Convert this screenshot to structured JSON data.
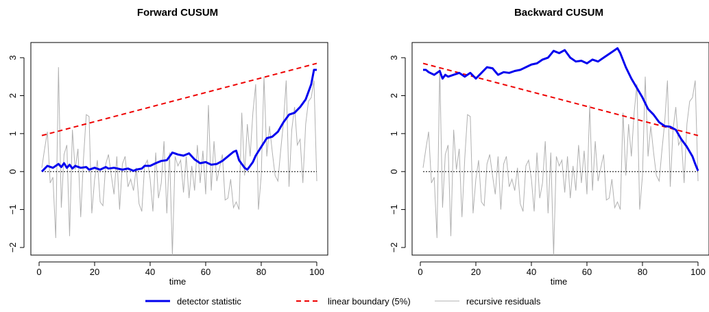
{
  "legend": {
    "detector": "detector statistic",
    "boundary": "linear boundary (5%)",
    "residuals": "recursive residuals"
  },
  "colors": {
    "detector": "#0000ee",
    "boundary": "#ee0000",
    "residuals": "#b0b0b0",
    "zero_line": "#000000"
  },
  "chart_data": [
    {
      "type": "line",
      "title": "Forward CUSUM",
      "xlabel": "time",
      "ylabel": "",
      "xlim": [
        1,
        100
      ],
      "ylim": [
        -2.2,
        3.4
      ],
      "x_ticks": [
        0,
        20,
        40,
        60,
        80,
        100
      ],
      "y_ticks": [
        -2,
        -1,
        0,
        1,
        2,
        3
      ],
      "zero_line": 0,
      "boundary": {
        "x": [
          1,
          100
        ],
        "y": [
          0.95,
          2.85
        ]
      },
      "detector": {
        "x": [
          1,
          3,
          5,
          7,
          8,
          9,
          10,
          11,
          12,
          13,
          15,
          17,
          18,
          20,
          22,
          24,
          25,
          27,
          30,
          32,
          34,
          35,
          37,
          38,
          40,
          42,
          44,
          46,
          48,
          50,
          52,
          54,
          56,
          58,
          60,
          62,
          64,
          66,
          68,
          70,
          71,
          72,
          74,
          75,
          76,
          77,
          78,
          80,
          82,
          84,
          86,
          88,
          90,
          92,
          94,
          96,
          98,
          99,
          100
        ],
        "y": [
          0.0,
          0.15,
          0.1,
          0.2,
          0.12,
          0.22,
          0.1,
          0.18,
          0.08,
          0.15,
          0.1,
          0.12,
          0.05,
          0.1,
          0.05,
          0.12,
          0.08,
          0.1,
          0.05,
          0.08,
          0.02,
          0.05,
          0.08,
          0.15,
          0.15,
          0.22,
          0.28,
          0.3,
          0.5,
          0.45,
          0.42,
          0.48,
          0.32,
          0.22,
          0.25,
          0.18,
          0.2,
          0.28,
          0.4,
          0.52,
          0.55,
          0.3,
          0.1,
          0.05,
          0.15,
          0.25,
          0.42,
          0.65,
          0.88,
          0.92,
          1.05,
          1.3,
          1.5,
          1.55,
          1.7,
          1.9,
          2.3,
          2.68,
          2.68
        ]
      },
      "residuals": {
        "x": [
          1,
          2,
          3,
          4,
          5,
          6,
          7,
          8,
          9,
          10,
          11,
          12,
          13,
          14,
          15,
          16,
          17,
          18,
          19,
          20,
          21,
          22,
          23,
          24,
          25,
          26,
          27,
          28,
          29,
          30,
          31,
          32,
          33,
          34,
          35,
          36,
          37,
          38,
          39,
          40,
          41,
          42,
          43,
          44,
          45,
          46,
          47,
          48,
          49,
          50,
          51,
          52,
          53,
          54,
          55,
          56,
          57,
          58,
          59,
          60,
          61,
          62,
          63,
          64,
          65,
          66,
          67,
          68,
          69,
          70,
          71,
          72,
          73,
          74,
          75,
          76,
          77,
          78,
          79,
          80,
          81,
          82,
          83,
          84,
          85,
          86,
          87,
          88,
          89,
          90,
          91,
          92,
          93,
          94,
          95,
          96,
          97,
          98,
          99,
          100
        ],
        "y": [
          0.1,
          0.6,
          1.05,
          -0.3,
          -0.15,
          -1.75,
          2.75,
          -0.95,
          0.45,
          0.7,
          -1.7,
          1.1,
          0.05,
          0.6,
          -1.2,
          0.35,
          1.5,
          1.45,
          -1.1,
          -0.2,
          0.3,
          -0.8,
          -0.9,
          0.2,
          0.45,
          -0.1,
          -0.6,
          0.4,
          -1.0,
          0.2,
          0.4,
          -0.4,
          -0.2,
          -0.5,
          0.1,
          -0.85,
          -1.05,
          0.15,
          0.3,
          -0.2,
          -1.05,
          0.5,
          -0.7,
          -0.3,
          0.8,
          -1.1,
          0.5,
          -2.2,
          0.4,
          0.15,
          0.3,
          -0.55,
          0.4,
          -0.7,
          0.15,
          -0.5,
          0.7,
          -0.3,
          0.55,
          -0.6,
          1.75,
          -0.5,
          0.8,
          -0.25,
          0.1,
          0.45,
          -0.75,
          -0.7,
          -0.2,
          -0.95,
          -0.8,
          -1.0,
          1.55,
          -0.1,
          1.25,
          0.4,
          1.55,
          2.3,
          -1.0,
          -0.1,
          2.5,
          0.4,
          1.2,
          0.5,
          -0.1,
          -0.25,
          0.55,
          1.3,
          2.4,
          -0.4,
          1.1,
          1.7,
          0.7,
          0.85,
          -0.3,
          1.25,
          1.85,
          1.95,
          2.4,
          -0.25
        ]
      }
    },
    {
      "type": "line",
      "title": "Backward CUSUM",
      "xlabel": "time",
      "ylabel": "",
      "xlim": [
        1,
        100
      ],
      "ylim": [
        -2.2,
        3.4
      ],
      "x_ticks": [
        0,
        20,
        40,
        60,
        80,
        100
      ],
      "y_ticks": [
        -2,
        -1,
        0,
        1,
        2,
        3
      ],
      "zero_line": 0,
      "boundary": {
        "x": [
          1,
          100
        ],
        "y": [
          2.85,
          0.95
        ]
      },
      "detector": {
        "x": [
          1,
          2,
          3,
          5,
          7,
          8,
          9,
          10,
          12,
          14,
          16,
          18,
          20,
          22,
          24,
          26,
          28,
          30,
          32,
          34,
          36,
          38,
          40,
          42,
          44,
          46,
          48,
          50,
          52,
          54,
          56,
          58,
          60,
          62,
          64,
          66,
          68,
          70,
          71,
          72,
          74,
          76,
          78,
          80,
          82,
          84,
          86,
          88,
          90,
          92,
          94,
          96,
          98,
          99,
          100
        ],
        "y": [
          2.68,
          2.68,
          2.62,
          2.55,
          2.65,
          2.45,
          2.55,
          2.5,
          2.55,
          2.6,
          2.5,
          2.6,
          2.45,
          2.6,
          2.75,
          2.72,
          2.55,
          2.62,
          2.6,
          2.65,
          2.68,
          2.75,
          2.82,
          2.85,
          2.95,
          3.0,
          3.18,
          3.12,
          3.2,
          3.0,
          2.9,
          2.92,
          2.85,
          2.95,
          2.9,
          3.0,
          3.1,
          3.2,
          3.25,
          3.12,
          2.75,
          2.45,
          2.2,
          1.95,
          1.65,
          1.5,
          1.3,
          1.2,
          1.18,
          1.1,
          0.85,
          0.65,
          0.4,
          0.2,
          0.02
        ]
      },
      "residuals": {
        "x": [
          1,
          2,
          3,
          4,
          5,
          6,
          7,
          8,
          9,
          10,
          11,
          12,
          13,
          14,
          15,
          16,
          17,
          18,
          19,
          20,
          21,
          22,
          23,
          24,
          25,
          26,
          27,
          28,
          29,
          30,
          31,
          32,
          33,
          34,
          35,
          36,
          37,
          38,
          39,
          40,
          41,
          42,
          43,
          44,
          45,
          46,
          47,
          48,
          49,
          50,
          51,
          52,
          53,
          54,
          55,
          56,
          57,
          58,
          59,
          60,
          61,
          62,
          63,
          64,
          65,
          66,
          67,
          68,
          69,
          70,
          71,
          72,
          73,
          74,
          75,
          76,
          77,
          78,
          79,
          80,
          81,
          82,
          83,
          84,
          85,
          86,
          87,
          88,
          89,
          90,
          91,
          92,
          93,
          94,
          95,
          96,
          97,
          98,
          99,
          100
        ],
        "y": [
          0.1,
          0.6,
          1.05,
          -0.3,
          -0.15,
          -1.75,
          2.75,
          -0.95,
          0.45,
          0.7,
          -1.7,
          1.1,
          0.05,
          0.6,
          -1.2,
          0.35,
          1.5,
          1.45,
          -1.1,
          -0.2,
          0.3,
          -0.8,
          -0.9,
          0.2,
          0.45,
          -0.1,
          -0.6,
          0.4,
          -1.0,
          0.2,
          0.4,
          -0.4,
          -0.2,
          -0.5,
          0.1,
          -0.85,
          -1.05,
          0.15,
          0.3,
          -0.2,
          -1.05,
          0.5,
          -0.7,
          -0.3,
          0.8,
          -1.1,
          0.5,
          -2.2,
          0.4,
          0.15,
          0.3,
          -0.55,
          0.4,
          -0.7,
          0.15,
          -0.5,
          0.7,
          -0.3,
          0.55,
          -0.6,
          1.75,
          -0.5,
          0.8,
          -0.25,
          0.1,
          0.45,
          -0.75,
          -0.7,
          -0.2,
          -0.95,
          -0.8,
          -1.0,
          1.55,
          -0.1,
          1.25,
          0.4,
          1.55,
          2.3,
          -1.0,
          -0.1,
          2.5,
          0.4,
          1.2,
          0.5,
          -0.1,
          -0.25,
          0.55,
          1.3,
          2.4,
          -0.4,
          1.1,
          1.7,
          0.7,
          0.85,
          -0.3,
          1.25,
          1.85,
          1.95,
          2.4,
          -0.25
        ]
      }
    }
  ]
}
